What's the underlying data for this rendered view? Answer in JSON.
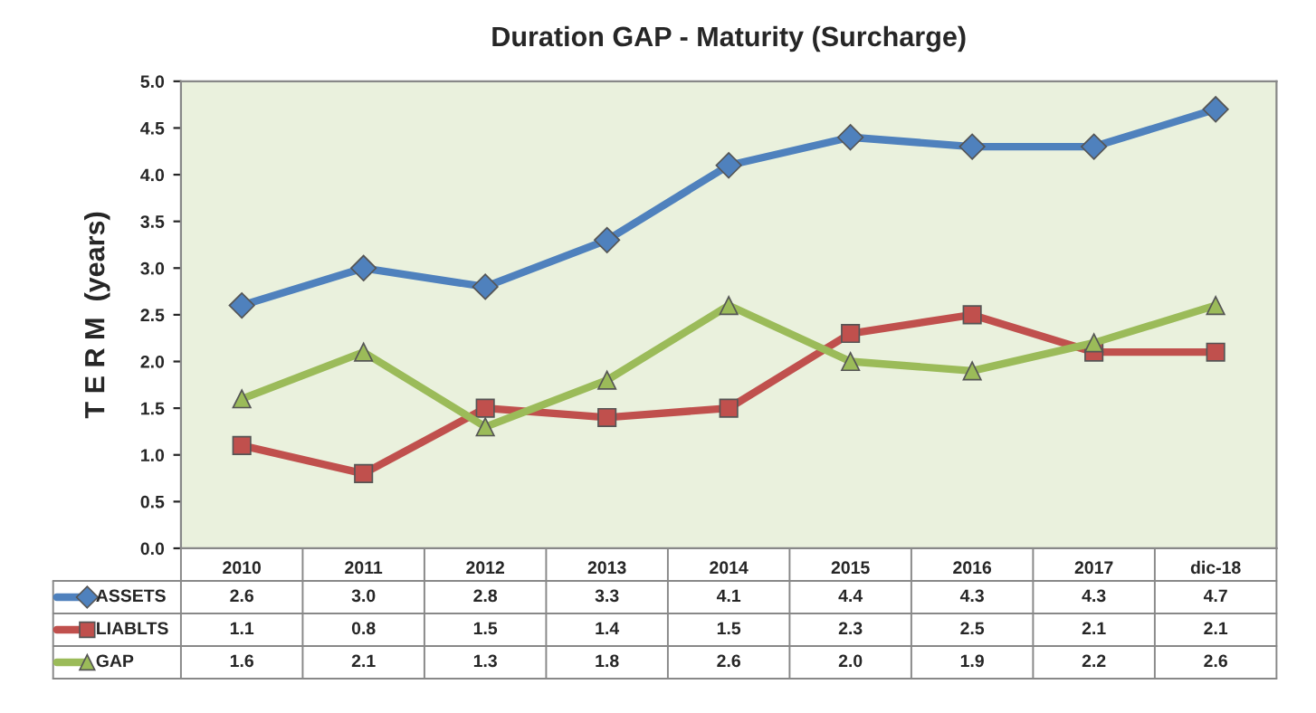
{
  "chart_data": {
    "type": "line",
    "title": "Duration GAP - Maturity (Surcharge)",
    "ylabel": "T E R M  (years)",
    "categories": [
      "2010",
      "2011",
      "2012",
      "2013",
      "2014",
      "2015",
      "2016",
      "2017",
      "dic-18"
    ],
    "series": [
      {
        "name": "ASSETS",
        "color": "#4f81bd",
        "marker": "diamond",
        "values": [
          2.6,
          3.0,
          2.8,
          3.3,
          4.1,
          4.4,
          4.3,
          4.3,
          4.7
        ],
        "value_labels": [
          "2.6",
          "3.0",
          "2.8",
          "3.3",
          "4.1",
          "4.4",
          "4.3",
          "4.3",
          "4.7"
        ]
      },
      {
        "name": "LIABLTS",
        "color": "#c0504d",
        "marker": "square",
        "values": [
          1.1,
          0.8,
          1.5,
          1.4,
          1.5,
          2.3,
          2.5,
          2.1,
          2.1
        ],
        "value_labels": [
          "1.1",
          "0.8",
          "1.5",
          "1.4",
          "1.5",
          "2.3",
          "2.5",
          "2.1",
          "2.1"
        ]
      },
      {
        "name": "GAP",
        "color": "#9bbb59",
        "marker": "triangle",
        "values": [
          1.6,
          2.1,
          1.3,
          1.8,
          2.6,
          2.0,
          1.9,
          2.2,
          2.6
        ],
        "value_labels": [
          "1.6",
          "2.1",
          "1.3",
          "1.8",
          "2.6",
          "2.0",
          "1.9",
          "2.2",
          "2.6"
        ]
      }
    ],
    "ylim": [
      0,
      5
    ],
    "yticks": [
      {
        "value": 0,
        "label": "0.0"
      },
      {
        "value": 0.5,
        "label": "0.5"
      },
      {
        "value": 1,
        "label": "1.0"
      },
      {
        "value": 1.5,
        "label": "1.5"
      },
      {
        "value": 2,
        "label": "2.0"
      },
      {
        "value": 2.5,
        "label": "2.5"
      },
      {
        "value": 3,
        "label": "3.0"
      },
      {
        "value": 3.5,
        "label": "3.5"
      },
      {
        "value": 4,
        "label": "4.0"
      },
      {
        "value": 4.5,
        "label": "4.5"
      },
      {
        "value": 5,
        "label": "5.0"
      }
    ],
    "grid": false,
    "legend": "bottom"
  }
}
